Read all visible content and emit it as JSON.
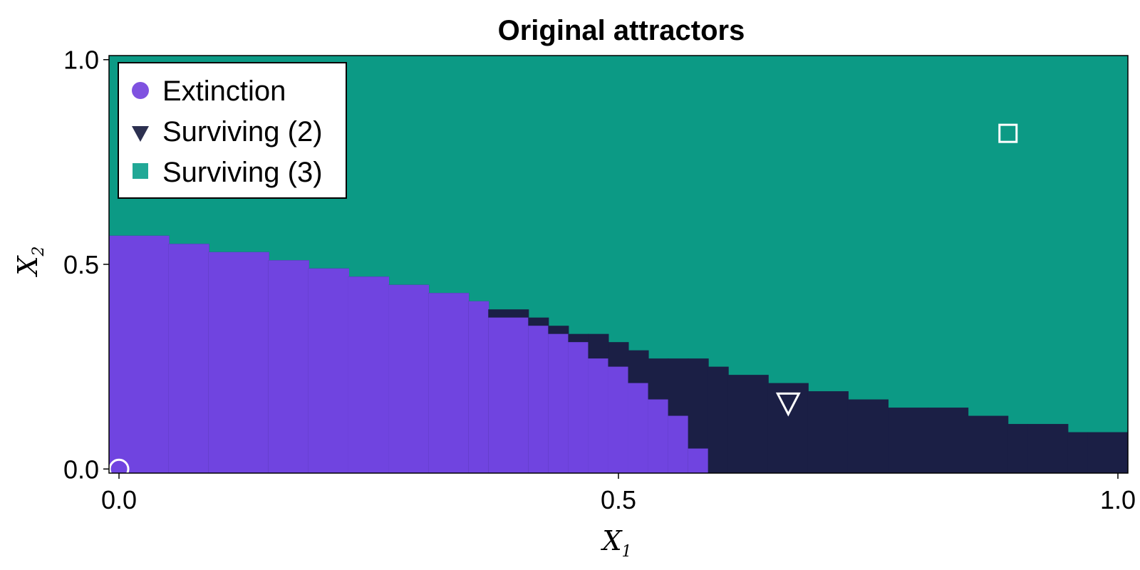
{
  "chart_data": {
    "type": "heatmap",
    "title": "Original attractors",
    "xlabel": "X",
    "xlabel_sub": "1",
    "ylabel": "X",
    "ylabel_sub": "2",
    "xlim": [
      -0.01,
      1.01
    ],
    "ylim": [
      -0.01,
      1.01
    ],
    "x_ticks": [
      0.0,
      0.5,
      1.0
    ],
    "x_tick_labels": [
      "0.0",
      "0.5",
      "1.0"
    ],
    "y_ticks": [
      0.0,
      0.5,
      1.0
    ],
    "y_tick_labels": [
      "0.0",
      "0.5",
      "1.0"
    ],
    "legend_position": "top-left",
    "colors": {
      "Extinction": "#7044e0",
      "Surviving (2)": "#1b1f45",
      "Surviving (3)": "#0c9a85",
      "legend_extinction": "#7f52e0",
      "legend_surviving2": "#2c3050",
      "legend_surviving3": "#21a896"
    },
    "series": [
      {
        "name": "Extinction",
        "marker": "circle",
        "attractor_point": {
          "x": 0.0,
          "y": 0.0
        }
      },
      {
        "name": "Surviving (2)",
        "marker": "triangle-down",
        "attractor_point": {
          "x": 0.67,
          "y": 0.16
        }
      },
      {
        "name": "Surviving (3)",
        "marker": "square",
        "attractor_point": {
          "x": 0.89,
          "y": 0.82
        }
      }
    ],
    "grid_x_edges": [
      -0.01,
      0.05,
      0.09,
      0.15,
      0.19,
      0.23,
      0.27,
      0.31,
      0.35,
      0.37,
      0.41,
      0.43,
      0.45,
      0.47,
      0.49,
      0.51,
      0.53,
      0.55,
      0.57,
      0.59,
      0.61,
      0.65,
      0.69,
      0.73,
      0.77,
      0.81,
      0.85,
      0.89,
      0.91,
      0.95,
      0.97,
      1.01
    ],
    "extinction_upper_y": [
      0.57,
      0.55,
      0.53,
      0.51,
      0.49,
      0.47,
      0.45,
      0.43,
      0.41,
      0.37,
      0.35,
      0.33,
      0.31,
      0.27,
      0.25,
      0.21,
      0.17,
      0.13,
      0.05,
      -0.01,
      -0.01,
      -0.01,
      -0.01,
      -0.01,
      -0.01,
      -0.01,
      -0.01,
      -0.01,
      -0.01,
      -0.01,
      -0.01
    ],
    "surviving2_upper_y": [
      0.57,
      0.55,
      0.53,
      0.51,
      0.49,
      0.47,
      0.45,
      0.43,
      0.41,
      0.39,
      0.37,
      0.35,
      0.33,
      0.33,
      0.31,
      0.29,
      0.27,
      0.27,
      0.27,
      0.25,
      0.23,
      0.21,
      0.19,
      0.17,
      0.15,
      0.15,
      0.13,
      0.11,
      0.11,
      0.09,
      0.09
    ]
  }
}
